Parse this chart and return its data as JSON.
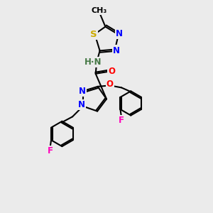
{
  "bg_color": "#ebebeb",
  "bond_color": "#000000",
  "atom_colors": {
    "N": "#0000ff",
    "O": "#ff0000",
    "S": "#ccaa00",
    "F": "#ff00bb",
    "H": "#447744",
    "C": "#000000"
  },
  "lw": 1.5,
  "fs": 8.5
}
